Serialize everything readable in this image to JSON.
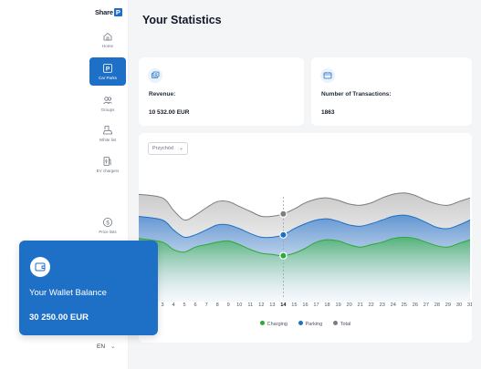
{
  "app": {
    "logo_text": "Share",
    "logo_badge": "P"
  },
  "sidebar": {
    "items": [
      {
        "label": "Home",
        "icon": "home-icon"
      },
      {
        "label": "Car Parks",
        "icon": "parking-icon",
        "active": true
      },
      {
        "label": "Groups",
        "icon": "users-icon"
      },
      {
        "label": "White list",
        "icon": "whitelist-car-icon"
      },
      {
        "label": "EV chargers",
        "icon": "ev-charger-icon"
      },
      {
        "label": "Price lists",
        "icon": "dollar-icon"
      }
    ],
    "language": "EN"
  },
  "page": {
    "title": "Your Statistics"
  },
  "stats": [
    {
      "label": "Revenue:",
      "value": "10 532.00 EUR",
      "icon": "cash-icon"
    },
    {
      "label": "Number of Transactions:",
      "value": "1863",
      "icon": "ticket-icon"
    }
  ],
  "filter": {
    "selected": "Przychód"
  },
  "wallet": {
    "title": "Your Wallet Balance",
    "value": "30 250.00 EUR",
    "icon": "wallet-icon"
  },
  "colors": {
    "accent": "#1e6fc6",
    "charging": "#2ea83a",
    "parking": "#1e6fc6",
    "total": "#7d7d7d"
  },
  "chart_data": {
    "type": "area",
    "x": [
      3,
      4,
      5,
      6,
      7,
      8,
      9,
      10,
      11,
      12,
      13,
      14,
      15,
      16,
      17,
      18,
      19,
      20,
      21,
      22,
      23,
      24,
      25,
      26,
      27,
      28,
      29,
      30,
      31
    ],
    "highlight_x": 14,
    "series": [
      {
        "name": "Charging",
        "values": [
          52,
          46,
          44,
          48,
          50,
          52,
          53,
          50,
          46,
          43,
          42,
          41,
          43,
          47,
          52,
          54,
          53,
          50,
          48,
          50,
          52,
          55,
          56,
          55,
          52,
          49,
          48,
          51,
          54
        ]
      },
      {
        "name": "Parking",
        "values": [
          70,
          62,
          56,
          58,
          62,
          66,
          66,
          63,
          59,
          56,
          56,
          58,
          63,
          67,
          70,
          71,
          69,
          66,
          65,
          67,
          70,
          73,
          74,
          72,
          68,
          64,
          63,
          66,
          70
        ]
      },
      {
        "name": "Total",
        "values": [
          88,
          78,
          70,
          74,
          80,
          85,
          85,
          81,
          77,
          73,
          73,
          75,
          79,
          84,
          87,
          88,
          86,
          83,
          82,
          84,
          88,
          91,
          92,
          90,
          86,
          83,
          82,
          85,
          88
        ]
      }
    ],
    "legend": [
      "Charging",
      "Parking",
      "Total"
    ],
    "legend_placement": "bottom-center",
    "grid": false
  }
}
